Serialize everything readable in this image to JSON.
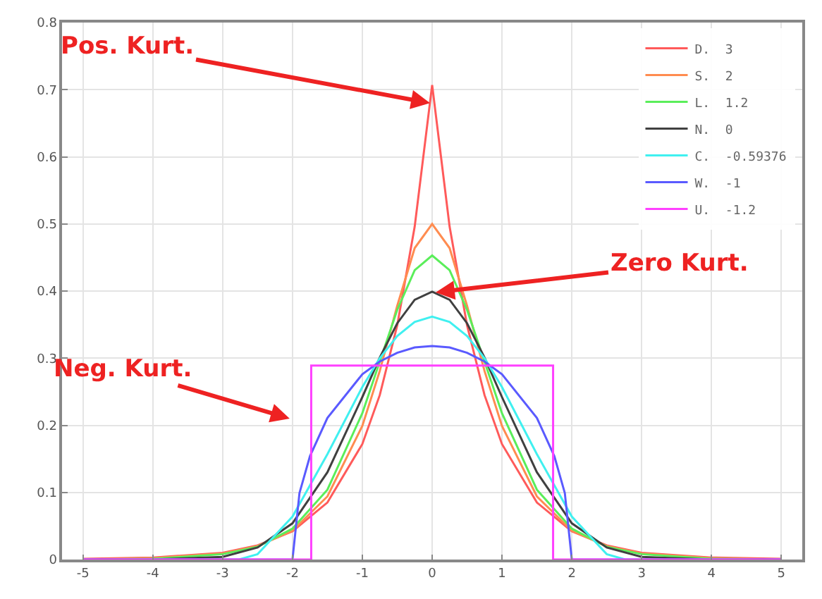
{
  "chart_data": {
    "type": "line",
    "xlim": [
      -5.3,
      5.3
    ],
    "xticks": [
      -5,
      -4,
      -3,
      -2,
      -1,
      0,
      1,
      2,
      3,
      4,
      5
    ],
    "ylim": [
      0,
      0.8
    ],
    "yticks": [
      0,
      0.1,
      0.2,
      0.3,
      0.4,
      0.5,
      0.6,
      0.7,
      0.8
    ],
    "grid": true,
    "legend": "top right",
    "marker": "none",
    "line_style": "solid",
    "series": [
      {
        "name": "D.  3",
        "color": "#ff5a5a",
        "x": [
          -5,
          -4,
          -3,
          -2.5,
          -2,
          -1.5,
          -1,
          -0.75,
          -0.5,
          -0.25,
          0,
          0.25,
          0.5,
          0.75,
          1,
          1.5,
          2,
          2.5,
          3,
          4,
          5
        ],
        "values": [
          0.001,
          0.003,
          0.01,
          0.021,
          0.042,
          0.085,
          0.172,
          0.245,
          0.349,
          0.496,
          0.707,
          0.496,
          0.349,
          0.245,
          0.172,
          0.085,
          0.042,
          0.021,
          0.01,
          0.003,
          0.001
        ]
      },
      {
        "name": "S.  2",
        "color": "#ff8c50",
        "x": [
          -5,
          -4,
          -3,
          -2.5,
          -2,
          -1.5,
          -1,
          -0.75,
          -0.5,
          -0.25,
          0,
          0.25,
          0.5,
          0.75,
          1,
          1.5,
          2,
          2.5,
          3,
          4,
          5
        ],
        "values": [
          0,
          0.002,
          0.009,
          0.02,
          0.043,
          0.094,
          0.199,
          0.281,
          0.378,
          0.464,
          0.5,
          0.464,
          0.378,
          0.281,
          0.199,
          0.094,
          0.043,
          0.02,
          0.009,
          0.002,
          0
        ]
      },
      {
        "name": "L.  1.2",
        "color": "#5aee5a",
        "x": [
          -5,
          -4,
          -3,
          -2.5,
          -2,
          -1.5,
          -1,
          -0.75,
          -0.5,
          -0.25,
          0,
          0.25,
          0.5,
          0.75,
          1,
          1.5,
          2,
          2.5,
          3,
          4,
          5
        ],
        "values": [
          0,
          0.001,
          0.008,
          0.019,
          0.046,
          0.104,
          0.218,
          0.295,
          0.372,
          0.431,
          0.453,
          0.431,
          0.372,
          0.295,
          0.218,
          0.104,
          0.046,
          0.019,
          0.008,
          0.001,
          0
        ]
      },
      {
        "name": "N.  0",
        "color": "#404040",
        "x": [
          -5,
          -4,
          -3,
          -2.5,
          -2,
          -1.5,
          -1,
          -0.75,
          -0.5,
          -0.25,
          0,
          0.25,
          0.5,
          0.75,
          1,
          1.5,
          2,
          2.5,
          3,
          4,
          5
        ],
        "values": [
          0,
          0,
          0.004,
          0.018,
          0.054,
          0.13,
          0.242,
          0.301,
          0.352,
          0.387,
          0.399,
          0.387,
          0.352,
          0.301,
          0.242,
          0.13,
          0.054,
          0.018,
          0.004,
          0,
          0
        ]
      },
      {
        "name": "C.  -0.59376",
        "color": "#40f0f0",
        "x": [
          -5,
          -2.766,
          -2.5,
          -2,
          -1.5,
          -1,
          -0.75,
          -0.5,
          -0.25,
          0,
          0.25,
          0.5,
          0.75,
          1,
          1.5,
          2,
          2.5,
          2.766,
          5
        ],
        "values": [
          0,
          0,
          0.008,
          0.064,
          0.157,
          0.257,
          0.3,
          0.333,
          0.354,
          0.362,
          0.354,
          0.333,
          0.3,
          0.257,
          0.157,
          0.064,
          0.008,
          0,
          0
        ]
      },
      {
        "name": "W.  -1",
        "color": "#5a5aff",
        "x": [
          -5,
          -2,
          -2,
          -1.9,
          -1.75,
          -1.5,
          -1,
          -0.75,
          -0.5,
          -0.25,
          0,
          0.25,
          0.5,
          0.75,
          1,
          1.5,
          1.75,
          1.9,
          2,
          2,
          5
        ],
        "values": [
          0,
          0,
          0,
          0.099,
          0.154,
          0.211,
          0.276,
          0.295,
          0.308,
          0.316,
          0.318,
          0.316,
          0.308,
          0.295,
          0.276,
          0.211,
          0.154,
          0.099,
          0,
          0,
          0
        ]
      },
      {
        "name": "U.  -1.2",
        "color": "#ff40ff",
        "x": [
          -5,
          -1.732,
          -1.732,
          1.732,
          1.732,
          5
        ],
        "values": [
          0,
          0,
          0.289,
          0.289,
          0,
          0
        ]
      }
    ],
    "annotations": [
      {
        "text": "Pos. Kurt.",
        "x": -0.03,
        "y": 0.68
      },
      {
        "text": "Zero Kurt.",
        "x": 0.05,
        "y": 0.398
      },
      "Neg. Kurt."
    ]
  }
}
